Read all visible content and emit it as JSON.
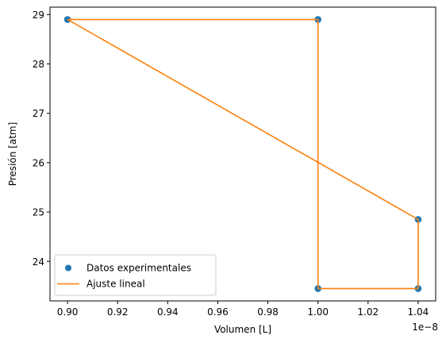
{
  "chart_data": {
    "type": "scatter+line",
    "title": "",
    "xlabel": "Volumen [L]",
    "ylabel": "Presión [atm]",
    "x_offset_label": "1e−8",
    "xlim": [
      0.893,
      1.047
    ],
    "ylim": [
      23.2,
      29.15
    ],
    "xticks": [
      0.9,
      0.92,
      0.94,
      0.96,
      0.98,
      1.0,
      1.02,
      1.04
    ],
    "xtick_labels": [
      "0.90",
      "0.92",
      "0.94",
      "0.96",
      "0.98",
      "1.00",
      "1.02",
      "1.04"
    ],
    "yticks": [
      24,
      25,
      26,
      27,
      28,
      29
    ],
    "ytick_labels": [
      "24",
      "25",
      "26",
      "27",
      "28",
      "29"
    ],
    "series": [
      {
        "name": "Datos experimentales",
        "kind": "scatter",
        "color": "#1f77b4",
        "x": [
          0.9,
          1.0,
          1.0,
          1.04,
          1.04
        ],
        "y": [
          28.9,
          28.9,
          23.45,
          23.45,
          24.85
        ]
      },
      {
        "name": "Ajuste lineal",
        "kind": "line",
        "color": "#ff7f0e",
        "x": [
          0.9,
          1.0,
          1.0,
          1.04,
          1.04,
          0.9
        ],
        "y": [
          28.9,
          28.9,
          23.45,
          23.45,
          24.85,
          28.9
        ]
      }
    ],
    "legend": {
      "position": "lower-left",
      "entries": [
        "Datos experimentales",
        "Ajuste lineal"
      ]
    }
  }
}
